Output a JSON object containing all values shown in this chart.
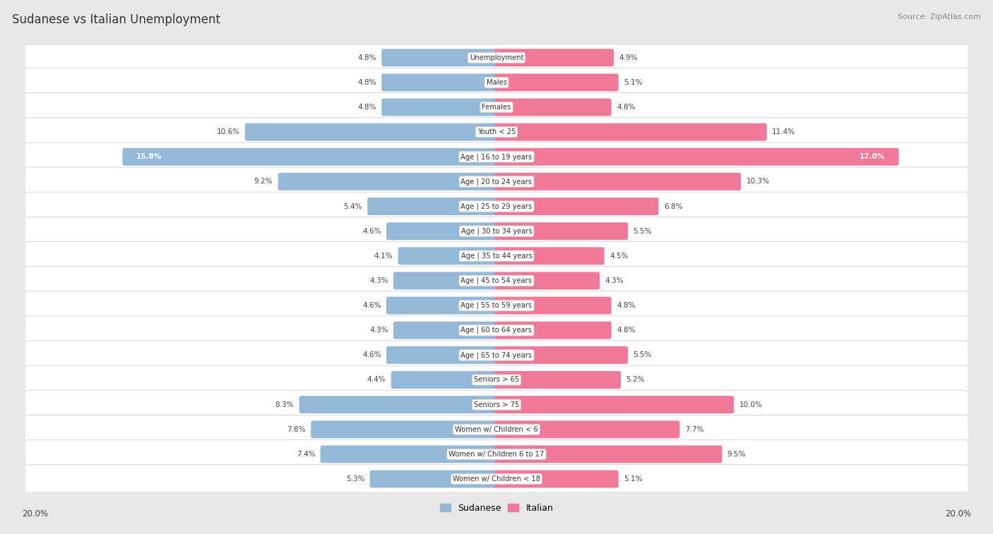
{
  "title": "Sudanese vs Italian Unemployment",
  "source": "Source: ZipAtlas.com",
  "categories": [
    "Unemployment",
    "Males",
    "Females",
    "Youth < 25",
    "Age | 16 to 19 years",
    "Age | 20 to 24 years",
    "Age | 25 to 29 years",
    "Age | 30 to 34 years",
    "Age | 35 to 44 years",
    "Age | 45 to 54 years",
    "Age | 55 to 59 years",
    "Age | 60 to 64 years",
    "Age | 65 to 74 years",
    "Seniors > 65",
    "Seniors > 75",
    "Women w/ Children < 6",
    "Women w/ Children 6 to 17",
    "Women w/ Children < 18"
  ],
  "sudanese": [
    4.8,
    4.8,
    4.8,
    10.6,
    15.8,
    9.2,
    5.4,
    4.6,
    4.1,
    4.3,
    4.6,
    4.3,
    4.6,
    4.4,
    8.3,
    7.8,
    7.4,
    5.3
  ],
  "italian": [
    4.9,
    5.1,
    4.8,
    11.4,
    17.0,
    10.3,
    6.8,
    5.5,
    4.5,
    4.3,
    4.8,
    4.8,
    5.5,
    5.2,
    10.0,
    7.7,
    9.5,
    5.1
  ],
  "max_val": 20.0,
  "blue_color": "#94b8d8",
  "pink_color": "#f07898",
  "bg_color": "#e8e8e8",
  "row_bg": "#f5f5f5",
  "row_border": "#d0d0d0"
}
